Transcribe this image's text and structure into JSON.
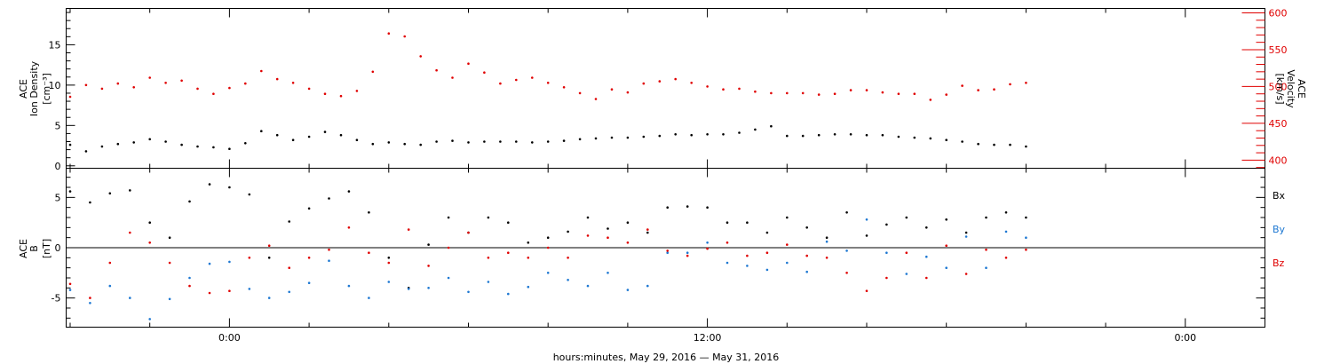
{
  "chart_data": [
    {
      "type": "scatter",
      "panel": "top",
      "ylabel_left": [
        "ACE",
        "Ion Density",
        "[cm⁻³]"
      ],
      "ylabel_right": [
        "ACE",
        "Velocity",
        "[km/s]"
      ],
      "ylim_left": [
        -0.3,
        19.5
      ],
      "ylim_right": [
        389,
        606
      ],
      "yticks_left": [
        "0",
        "5",
        "10",
        "15"
      ],
      "yticks_right": [
        "400",
        "450",
        "500",
        "550",
        "600"
      ],
      "series": [
        {
          "axis": "left",
          "color": "#000000",
          "points": [
            [
              -4.0,
              2.6
            ],
            [
              -3.6,
              1.8
            ],
            [
              -3.2,
              2.4
            ],
            [
              -2.8,
              2.7
            ],
            [
              -2.4,
              2.9
            ],
            [
              -2.0,
              3.3
            ],
            [
              -1.6,
              3.0
            ],
            [
              -1.2,
              2.6
            ],
            [
              -0.8,
              2.4
            ],
            [
              -0.4,
              2.3
            ],
            [
              0.0,
              2.1
            ],
            [
              0.4,
              2.8
            ],
            [
              0.8,
              4.3
            ],
            [
              1.2,
              3.8
            ],
            [
              1.6,
              3.2
            ],
            [
              2.0,
              3.6
            ],
            [
              2.4,
              4.2
            ],
            [
              2.8,
              3.8
            ],
            [
              3.2,
              3.2
            ],
            [
              3.6,
              2.7
            ],
            [
              4.0,
              2.9
            ],
            [
              4.4,
              2.7
            ],
            [
              4.8,
              2.6
            ],
            [
              5.2,
              3.0
            ],
            [
              5.6,
              3.1
            ],
            [
              6.0,
              2.9
            ],
            [
              6.4,
              3.0
            ],
            [
              6.8,
              3.0
            ],
            [
              7.2,
              3.0
            ],
            [
              7.6,
              2.9
            ],
            [
              8.0,
              3.0
            ],
            [
              8.4,
              3.1
            ],
            [
              8.8,
              3.3
            ],
            [
              9.2,
              3.4
            ],
            [
              9.6,
              3.5
            ],
            [
              10.0,
              3.5
            ],
            [
              10.4,
              3.6
            ],
            [
              10.8,
              3.7
            ],
            [
              11.2,
              3.9
            ],
            [
              11.6,
              3.8
            ],
            [
              12.0,
              3.9
            ],
            [
              12.4,
              3.9
            ],
            [
              12.8,
              4.1
            ],
            [
              13.2,
              4.5
            ],
            [
              13.6,
              4.9
            ],
            [
              14.0,
              3.7
            ],
            [
              14.4,
              3.7
            ],
            [
              14.8,
              3.8
            ],
            [
              15.2,
              3.9
            ],
            [
              15.6,
              3.9
            ],
            [
              16.0,
              3.8
            ],
            [
              16.4,
              3.8
            ],
            [
              16.8,
              3.6
            ],
            [
              17.2,
              3.5
            ],
            [
              17.6,
              3.4
            ],
            [
              18.0,
              3.2
            ],
            [
              18.4,
              3.0
            ],
            [
              18.8,
              2.7
            ],
            [
              19.2,
              2.6
            ],
            [
              19.6,
              2.6
            ],
            [
              20.0,
              2.4
            ]
          ]
        },
        {
          "axis": "right",
          "color": "#e00000",
          "points": [
            [
              -4.0,
              486
            ],
            [
              -3.6,
              502
            ],
            [
              -3.2,
              497
            ],
            [
              -2.8,
              504
            ],
            [
              -2.4,
              499
            ],
            [
              -2.0,
              512
            ],
            [
              -1.6,
              505
            ],
            [
              -1.2,
              508
            ],
            [
              -0.8,
              497
            ],
            [
              -0.4,
              490
            ],
            [
              0.0,
              498
            ],
            [
              0.4,
              504
            ],
            [
              0.8,
              521
            ],
            [
              1.2,
              510
            ],
            [
              1.6,
              505
            ],
            [
              2.0,
              497
            ],
            [
              2.4,
              490
            ],
            [
              2.8,
              487
            ],
            [
              3.2,
              494
            ],
            [
              3.6,
              520
            ],
            [
              4.0,
              572
            ],
            [
              4.4,
              568
            ],
            [
              4.8,
              541
            ],
            [
              5.2,
              522
            ],
            [
              5.6,
              512
            ],
            [
              6.0,
              531
            ],
            [
              6.4,
              519
            ],
            [
              6.8,
              504
            ],
            [
              7.2,
              509
            ],
            [
              7.6,
              512
            ],
            [
              8.0,
              505
            ],
            [
              8.4,
              499
            ],
            [
              8.8,
              491
            ],
            [
              9.2,
              483
            ],
            [
              9.6,
              496
            ],
            [
              10.0,
              492
            ],
            [
              10.4,
              504
            ],
            [
              10.8,
              507
            ],
            [
              11.2,
              510
            ],
            [
              11.6,
              505
            ],
            [
              12.0,
              500
            ],
            [
              12.4,
              496
            ],
            [
              12.8,
              497
            ],
            [
              13.2,
              493
            ],
            [
              13.6,
              491
            ],
            [
              14.0,
              491
            ],
            [
              14.4,
              491
            ],
            [
              14.8,
              489
            ],
            [
              15.2,
              490
            ],
            [
              15.6,
              495
            ],
            [
              16.0,
              495
            ],
            [
              16.4,
              492
            ],
            [
              16.8,
              490
            ],
            [
              17.2,
              490
            ],
            [
              17.6,
              482
            ],
            [
              18.0,
              489
            ],
            [
              18.4,
              501
            ],
            [
              18.8,
              495
            ],
            [
              19.2,
              496
            ],
            [
              19.6,
              503
            ],
            [
              20.0,
              505
            ]
          ]
        }
      ]
    },
    {
      "type": "scatter",
      "panel": "bottom",
      "ylabel_left": [
        "ACE",
        "B",
        "[nT]"
      ],
      "ylim_left": [
        -7.9,
        7.9
      ],
      "yticks_left": [
        "-5",
        "0",
        "5"
      ],
      "zero_line": true,
      "series": [
        {
          "name": "Bx",
          "color": "#000000",
          "points": [
            [
              -4.0,
              5.6
            ],
            [
              -3.5,
              4.5
            ],
            [
              -3.0,
              5.4
            ],
            [
              -2.5,
              5.7
            ],
            [
              -2.0,
              2.5
            ],
            [
              -1.5,
              1.0
            ],
            [
              -1.0,
              4.6
            ],
            [
              -0.5,
              6.3
            ],
            [
              0.0,
              6.0
            ],
            [
              0.5,
              5.3
            ],
            [
              1.0,
              -1.0
            ],
            [
              1.5,
              2.6
            ],
            [
              2.0,
              3.9
            ],
            [
              2.5,
              4.9
            ],
            [
              3.0,
              5.6
            ],
            [
              3.5,
              3.5
            ],
            [
              4.0,
              -1.0
            ],
            [
              4.5,
              -4.0
            ],
            [
              5.0,
              0.3
            ],
            [
              5.5,
              3.0
            ],
            [
              6.0,
              1.5
            ],
            [
              6.5,
              3.0
            ],
            [
              7.0,
              2.5
            ],
            [
              7.5,
              0.5
            ],
            [
              8.0,
              1.0
            ],
            [
              8.5,
              1.6
            ],
            [
              9.0,
              3.0
            ],
            [
              9.5,
              1.9
            ],
            [
              10.0,
              2.5
            ],
            [
              10.5,
              1.5
            ],
            [
              11.0,
              4.0
            ],
            [
              11.5,
              4.1
            ],
            [
              12.0,
              4.0
            ],
            [
              12.5,
              2.5
            ],
            [
              13.0,
              2.5
            ],
            [
              13.5,
              1.5
            ],
            [
              14.0,
              3.0
            ],
            [
              14.5,
              2.0
            ],
            [
              15.0,
              1.0
            ],
            [
              15.5,
              3.5
            ],
            [
              16.0,
              1.2
            ],
            [
              16.5,
              2.3
            ],
            [
              17.0,
              3.0
            ],
            [
              17.5,
              2.0
            ],
            [
              18.0,
              2.8
            ],
            [
              18.5,
              1.5
            ],
            [
              19.0,
              3.0
            ],
            [
              19.5,
              3.5
            ],
            [
              20.0,
              3.0
            ]
          ]
        },
        {
          "name": "By",
          "color": "#1e78d2",
          "points": [
            [
              -4.0,
              -4.2
            ],
            [
              -3.5,
              -5.5
            ],
            [
              -3.0,
              -3.8
            ],
            [
              -2.5,
              -5.0
            ],
            [
              -2.0,
              -7.1
            ],
            [
              -1.5,
              -5.1
            ],
            [
              -1.0,
              -3.0
            ],
            [
              -0.5,
              -1.6
            ],
            [
              0.0,
              -1.4
            ],
            [
              0.5,
              -4.1
            ],
            [
              1.0,
              -5.0
            ],
            [
              1.5,
              -4.4
            ],
            [
              2.0,
              -3.5
            ],
            [
              2.5,
              -1.3
            ],
            [
              3.0,
              -3.8
            ],
            [
              3.5,
              -5.0
            ],
            [
              4.0,
              -3.4
            ],
            [
              4.5,
              -4.1
            ],
            [
              5.0,
              -4.0
            ],
            [
              5.5,
              -3.0
            ],
            [
              6.0,
              -4.4
            ],
            [
              6.5,
              -3.4
            ],
            [
              7.0,
              -4.6
            ],
            [
              7.5,
              -3.9
            ],
            [
              8.0,
              -2.5
            ],
            [
              8.5,
              -3.2
            ],
            [
              9.0,
              -3.8
            ],
            [
              9.5,
              -2.5
            ],
            [
              10.0,
              -4.2
            ],
            [
              10.5,
              -3.8
            ],
            [
              11.0,
              -0.5
            ],
            [
              11.5,
              -0.5
            ],
            [
              12.0,
              0.5
            ],
            [
              12.5,
              -1.5
            ],
            [
              13.0,
              -1.8
            ],
            [
              13.5,
              -2.2
            ],
            [
              14.0,
              -1.5
            ],
            [
              14.5,
              -2.4
            ],
            [
              15.0,
              0.6
            ],
            [
              15.5,
              -0.3
            ],
            [
              16.0,
              2.8
            ],
            [
              16.5,
              -0.5
            ],
            [
              17.0,
              -2.6
            ],
            [
              17.5,
              -0.9
            ],
            [
              18.0,
              -2.0
            ],
            [
              18.5,
              1.1
            ],
            [
              19.0,
              -2.0
            ],
            [
              19.5,
              1.6
            ],
            [
              20.0,
              1.0
            ]
          ]
        },
        {
          "name": "Bz",
          "color": "#e00000",
          "points": [
            [
              -4.0,
              -3.6
            ],
            [
              -3.5,
              -5.0
            ],
            [
              -3.0,
              -1.5
            ],
            [
              -2.5,
              1.5
            ],
            [
              -2.0,
              0.5
            ],
            [
              -1.5,
              -1.5
            ],
            [
              -1.0,
              -3.8
            ],
            [
              -0.5,
              -4.5
            ],
            [
              0.0,
              -4.3
            ],
            [
              0.5,
              -1.0
            ],
            [
              1.0,
              0.2
            ],
            [
              1.5,
              -2.0
            ],
            [
              2.0,
              -1.0
            ],
            [
              2.5,
              -0.2
            ],
            [
              3.0,
              2.0
            ],
            [
              3.5,
              -0.5
            ],
            [
              4.0,
              -1.5
            ],
            [
              4.5,
              1.8
            ],
            [
              5.0,
              -1.8
            ],
            [
              5.5,
              0.0
            ],
            [
              6.0,
              1.5
            ],
            [
              6.5,
              -1.0
            ],
            [
              7.0,
              -0.5
            ],
            [
              7.5,
              -1.0
            ],
            [
              8.0,
              0.0
            ],
            [
              8.5,
              -1.0
            ],
            [
              9.0,
              1.2
            ],
            [
              9.5,
              1.0
            ],
            [
              10.0,
              0.5
            ],
            [
              10.5,
              1.8
            ],
            [
              11.0,
              -0.3
            ],
            [
              11.5,
              -0.8
            ],
            [
              12.0,
              -0.1
            ],
            [
              12.5,
              0.5
            ],
            [
              13.0,
              -0.8
            ],
            [
              13.5,
              -0.5
            ],
            [
              14.0,
              0.3
            ],
            [
              14.5,
              -0.8
            ],
            [
              15.0,
              -1.0
            ],
            [
              15.5,
              -2.5
            ],
            [
              16.0,
              -4.3
            ],
            [
              16.5,
              -3.0
            ],
            [
              17.0,
              -0.5
            ],
            [
              17.5,
              -3.0
            ],
            [
              18.0,
              0.2
            ],
            [
              18.5,
              -2.6
            ],
            [
              19.0,
              -0.2
            ],
            [
              19.5,
              -1.0
            ],
            [
              20.0,
              -0.2
            ]
          ]
        }
      ]
    }
  ],
  "xaxis": {
    "unit": "hours relative to 0:00 tick",
    "range": [
      -4.1,
      26.0
    ],
    "ticks": [
      {
        "value": 0,
        "label": "0:00"
      },
      {
        "value": 12,
        "label": "12:00"
      },
      {
        "value": 24,
        "label": "0:00"
      }
    ],
    "title": "hours:minutes, May 29, 2016 — May 31, 2016"
  },
  "colors": {
    "black": "#000000",
    "red": "#e00000",
    "blue": "#1e78d2"
  }
}
